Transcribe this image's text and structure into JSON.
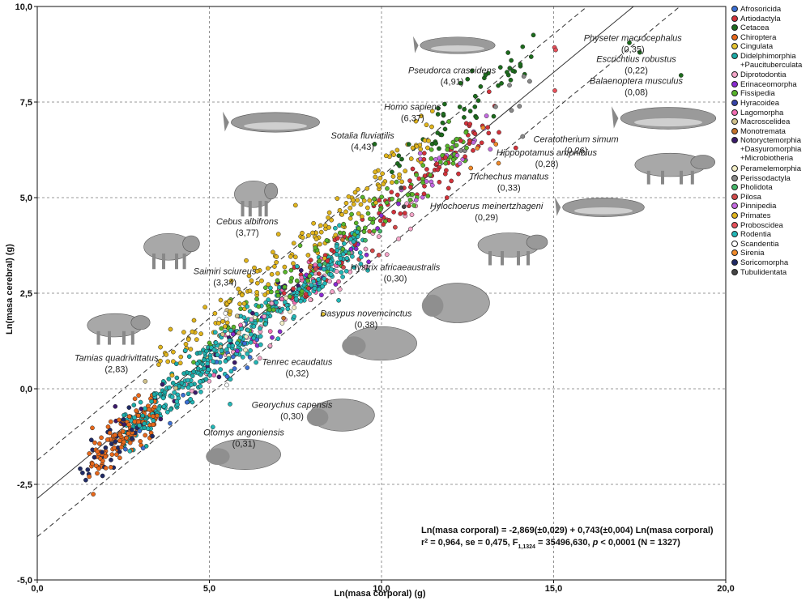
{
  "chart_data": {
    "type": "scatter",
    "xlabel": "Ln(masa corporal) (g)",
    "ylabel": "Ln(masa cerebral) (g)",
    "xlim": [
      0,
      20
    ],
    "ylim": [
      -5,
      10
    ],
    "x_ticks": [
      "0,0",
      "5,0",
      "10,0",
      "15,0",
      "20,0"
    ],
    "y_ticks": [
      "-5,0",
      "-2,5",
      "0,0",
      "2,5",
      "5,0",
      "7,5",
      "10,0"
    ],
    "x_tick_values": [
      0,
      5,
      10,
      15,
      20
    ],
    "y_tick_values": [
      -5,
      -2.5,
      0,
      2.5,
      5,
      7.5,
      10
    ],
    "grid": true,
    "legend_placement": "right",
    "regression": {
      "intercept": -2.869,
      "slope": 0.743,
      "band": 1.0,
      "line1": "Ln(masa corporal) = -2,869(±0,029) + 0,743(±0,004) Ln(masa corporal)",
      "line2_parts": {
        "r": "r",
        "r_sup": "2",
        "a": " = 0,964, se = 0,475, F",
        "f_sub": "1,1324",
        "b": " = 35496,630, ",
        "p": "p",
        "c": " < 0,0001 (N = 1327)"
      }
    },
    "legend": [
      {
        "name": "Afrosoricida",
        "color": "#3b6fd4"
      },
      {
        "name": "Artiodactyla",
        "color": "#d2323a"
      },
      {
        "name": "Cetacea",
        "color": "#1c6b1c"
      },
      {
        "name": "Chiroptera",
        "color": "#e8681a"
      },
      {
        "name": "Cingulata",
        "color": "#e6c431"
      },
      {
        "name": "Didelphimorphia\n+Paucituberculata",
        "color": "#1aa9a5"
      },
      {
        "name": "Diprotodontia",
        "color": "#f4a5c8"
      },
      {
        "name": "Erinaceomorpha",
        "color": "#8a2bd1"
      },
      {
        "name": "Fissipedia",
        "color": "#58b52a"
      },
      {
        "name": "Hyracoidea",
        "color": "#3543a8"
      },
      {
        "name": "Lagomorpha",
        "color": "#f06bb0"
      },
      {
        "name": "Macroscelidea",
        "color": "#cfc08a"
      },
      {
        "name": "Monotremata",
        "color": "#c4722a"
      },
      {
        "name": "Notoryctemorphia\n+Dasyuromorphia\n+Microbiotheria",
        "color": "#3b1a6b"
      },
      {
        "name": "Peramelemorphia",
        "color": "#f3eec6"
      },
      {
        "name": "Perissodactyla",
        "color": "#8a8a8a"
      },
      {
        "name": "Pholidota",
        "color": "#46b86a"
      },
      {
        "name": "Pilosa",
        "color": "#d24a4a"
      },
      {
        "name": "Pinnipedia",
        "color": "#c46ae0"
      },
      {
        "name": "Primates",
        "color": "#e0b41c"
      },
      {
        "name": "Proboscidea",
        "color": "#e8505a"
      },
      {
        "name": "Rodentia",
        "color": "#23b7b7"
      },
      {
        "name": "Scandentia",
        "color": "#ffffff"
      },
      {
        "name": "Sirenia",
        "color": "#f08a2a"
      },
      {
        "name": "Soricomorpha",
        "color": "#1f2a66"
      },
      {
        "name": "Tubulidentata",
        "color": "#444444"
      }
    ],
    "annotations": [
      {
        "name": "Physeter macrocephalus",
        "value": "(0,35)",
        "x": 17.3,
        "y": 9.1,
        "point": [
          17.2,
          9.05
        ]
      },
      {
        "name": "Escrichtius robustus",
        "value": "(0,22)",
        "x": 17.4,
        "y": 8.55,
        "point": [
          17.5,
          8.8
        ]
      },
      {
        "name": "Balaenoptera musculus",
        "value": "(0,08)",
        "x": 17.4,
        "y": 7.98,
        "point": [
          18.7,
          8.2
        ]
      },
      {
        "name": "Pseudorca crassidens",
        "value": "(4,91)",
        "x": 12.05,
        "y": 8.25,
        "point": [
          12.5,
          8.1
        ]
      },
      {
        "name": "Homo sapiens",
        "value": "(6,37)",
        "x": 10.9,
        "y": 7.3,
        "point": [
          11.0,
          7.0
        ]
      },
      {
        "name": "Sotalia fluviatilis",
        "value": "(4,43)",
        "x": 9.45,
        "y": 6.55,
        "point": [
          9.8,
          6.4
        ]
      },
      {
        "name": "Ceratotherium simum",
        "value": "(0,26)",
        "x": 15.65,
        "y": 6.45,
        "point": [
          14.1,
          6.6
        ]
      },
      {
        "name": "Hippopotamus amphibius",
        "value": "(0,28)",
        "x": 14.8,
        "y": 6.1,
        "point": [
          13.9,
          6.3
        ]
      },
      {
        "name": "Trichechus manatus",
        "value": "(0,33)",
        "x": 13.7,
        "y": 5.48,
        "point": [
          13.4,
          5.9
        ]
      },
      {
        "name": "Hylochoerus meinertzhageni",
        "value": "(0,29)",
        "x": 13.05,
        "y": 4.7,
        "point": [
          11.9,
          5.0
        ]
      },
      {
        "name": "Cebus albifrons",
        "value": "(3,77)",
        "x": 6.1,
        "y": 4.3,
        "point": [
          7.5,
          4.8
        ]
      },
      {
        "name": "Hystrix africaeaustralis",
        "value": "(0,30)",
        "x": 10.4,
        "y": 3.1,
        "point": [
          9.6,
          3.1
        ]
      },
      {
        "name": "Saimiri sciureus",
        "value": "(3,34)",
        "x": 5.45,
        "y": 3.0,
        "point": [
          6.7,
          3.15
        ]
      },
      {
        "name": "Dasypus novemcinctus",
        "value": "(0,38)",
        "x": 9.55,
        "y": 1.9,
        "point": [
          8.3,
          1.95
        ]
      },
      {
        "name": "Tamias quadrivittatus",
        "value": "(2,83)",
        "x": 2.3,
        "y": 0.73,
        "point": [
          4.3,
          1.0
        ]
      },
      {
        "name": "Tenrec ecaudatus",
        "value": "(0,32)",
        "x": 7.55,
        "y": 0.62,
        "point": [
          6.1,
          0.55
        ]
      },
      {
        "name": "Georychus capensis",
        "value": "(0,30)",
        "x": 7.4,
        "y": -0.5,
        "point": [
          5.6,
          -0.4
        ]
      },
      {
        "name": "Otomys angoniensis",
        "value": "(0,31)",
        "x": 6.0,
        "y": -1.22,
        "point": [
          5.1,
          -1.0
        ]
      }
    ],
    "series_description": "1327 species, Ln(body mass) vs Ln(brain mass), grouped by order"
  }
}
